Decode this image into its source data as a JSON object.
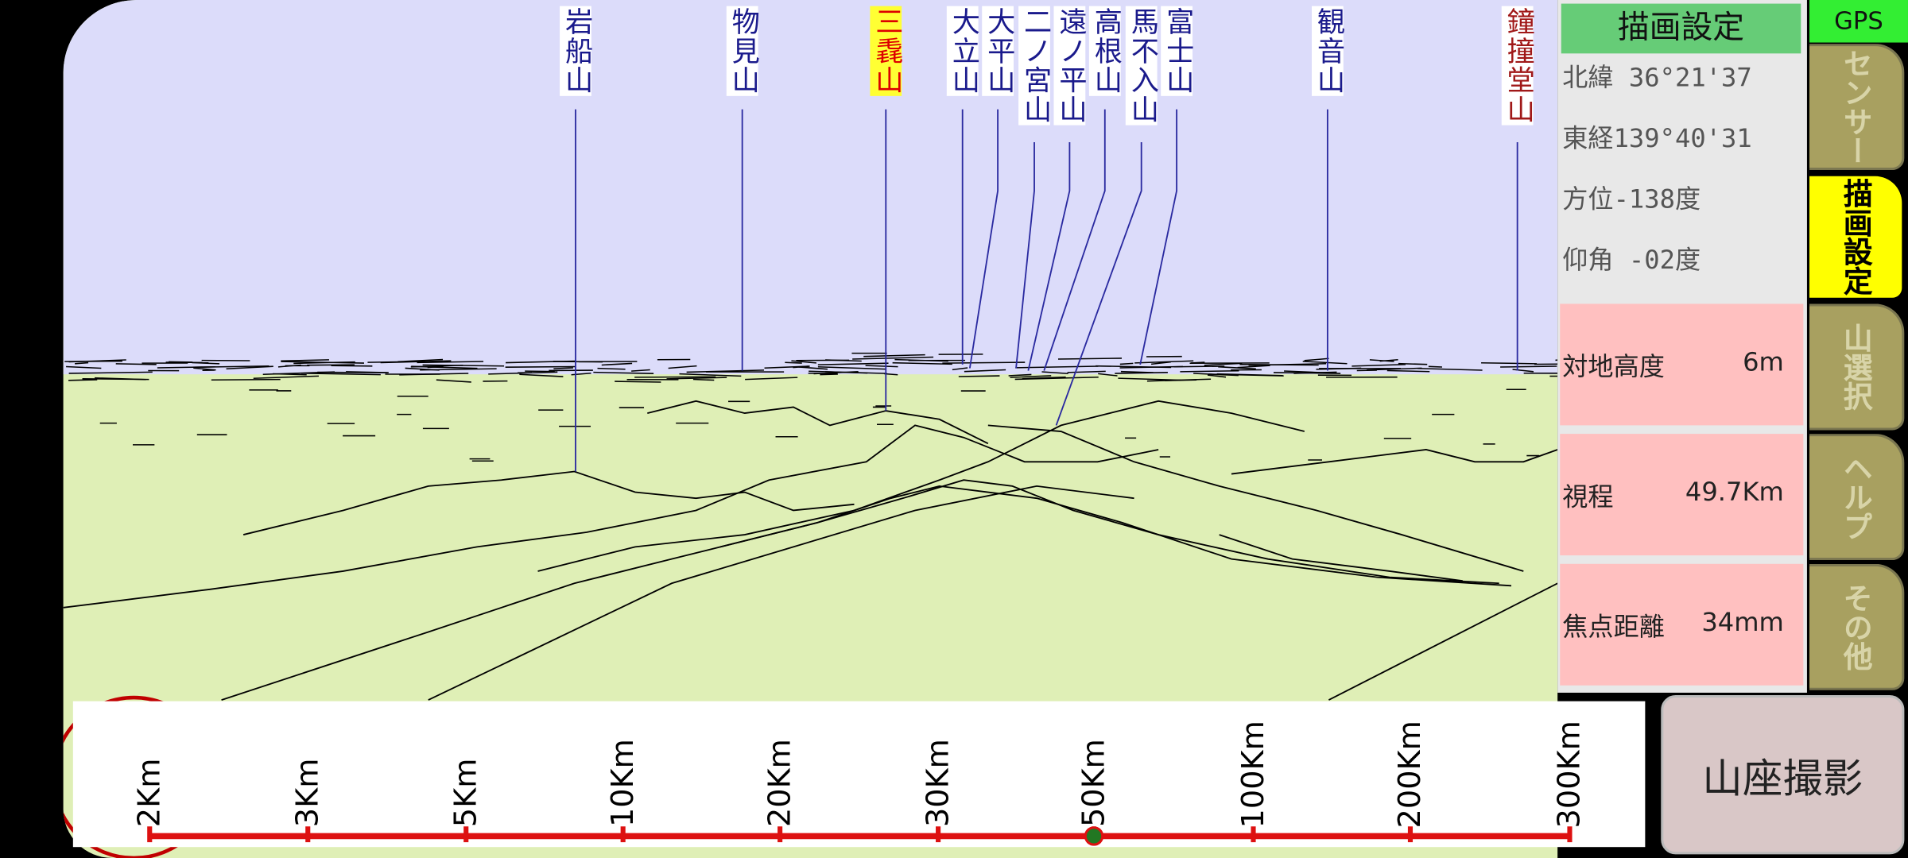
{
  "mountain_labels": [
    "岩船山",
    "物見山",
    "三毳山",
    "大立山",
    "大平山",
    "二ノ宮山",
    "遠ノ平山",
    "高根山",
    "馬不入山",
    "富士山",
    "観音山",
    "鐘撞堂山"
  ],
  "panel": {
    "title": "描画設定",
    "info": [
      "北緯 36°21'37",
      "東経139°40'31",
      "方位-138度",
      "仰角 -02度"
    ],
    "boxes": [
      {
        "label": "対地高度",
        "value": "6m"
      },
      {
        "label": "視程",
        "value": "49.7Km"
      },
      {
        "label": "焦点距離",
        "value": "34mm"
      }
    ]
  },
  "tabs": {
    "gps": "GPS",
    "items": [
      "センサー",
      "描画設定",
      "山選択",
      "ヘルプ",
      "その他"
    ]
  },
  "scale_labels": [
    "2Km",
    "3Km",
    "5Km",
    "10Km",
    "20Km",
    "30Km",
    "50Km",
    "100Km",
    "200Km",
    "300Km"
  ],
  "button": "山座撮影"
}
